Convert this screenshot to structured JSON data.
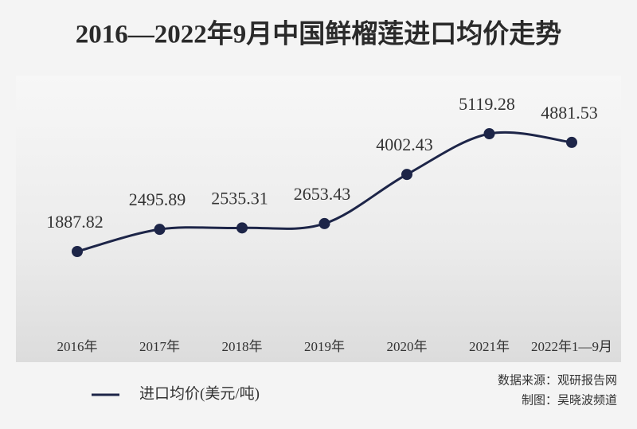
{
  "chart_data": {
    "type": "line",
    "title": "2016—2022年9月中国鲜榴莲进口均价走势",
    "categories": [
      "2016年",
      "2017年",
      "2018年",
      "2019年",
      "2020年",
      "2021年",
      "2022年1—9月"
    ],
    "series": [
      {
        "name": "进口均价(美元/吨)",
        "color": "#1d2548",
        "values": [
          1887.82,
          2495.89,
          2535.31,
          2653.43,
          4002.43,
          5119.28,
          4881.53
        ]
      }
    ],
    "source": "数据来源：观研报告网",
    "credit": "制图：吴晓波频道"
  }
}
